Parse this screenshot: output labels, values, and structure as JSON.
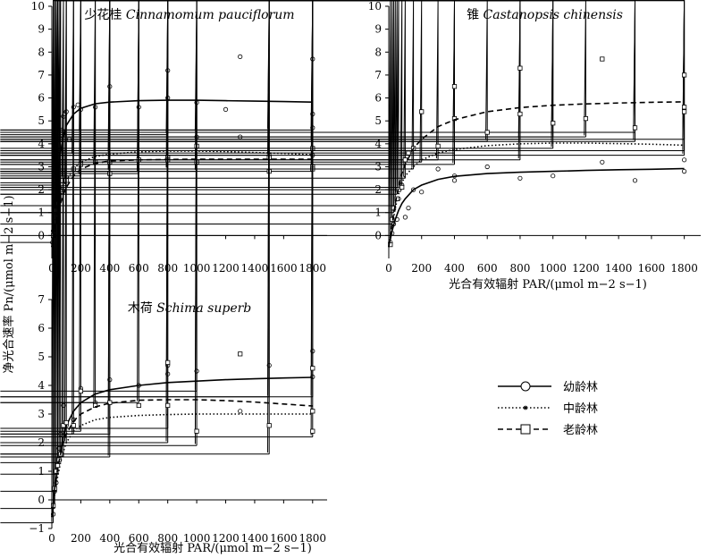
{
  "ylabel": "净光合速率 Pn/(μmol m−2 s−1)",
  "xlabel": "光合有效辐射 PAR/(μmol m−2 s−1)",
  "legend": [
    {
      "label": "幼龄林",
      "style": "solid",
      "marker": "circle"
    },
    {
      "label": "中龄林",
      "style": "dotted",
      "marker": "asterisk"
    },
    {
      "label": "老龄林",
      "style": "dashed",
      "marker": "square"
    }
  ],
  "chart_data": [
    {
      "type": "scatter",
      "title_cn": "少花桂",
      "title_latin": "Cinnamomum pauciflorum",
      "xticks": [
        "0",
        "200",
        "400",
        "600",
        "800",
        "1000",
        "1200",
        "1400",
        "1600",
        "1800"
      ],
      "yticks": [
        "0",
        "1",
        "2",
        "3",
        "4",
        "5",
        "6",
        "7",
        "8",
        "9",
        "10"
      ],
      "xlim": [
        0,
        1900
      ],
      "ylim": [
        -1,
        10
      ],
      "series": [
        {
          "name": "幼龄林",
          "marker": "circle",
          "line": "solid",
          "curve": {
            "x": [
              0,
              20,
              40,
              60,
              80,
              100,
              150,
              200,
              300,
              400,
              600,
              800,
              1000,
              1200,
              1400,
              1600,
              1800
            ],
            "y": [
              -0.5,
              1.2,
              2.6,
              3.6,
              4.3,
              4.8,
              5.3,
              5.55,
              5.75,
              5.82,
              5.88,
              5.9,
              5.9,
              5.88,
              5.86,
              5.84,
              5.82
            ]
          },
          "points": {
            "x": [
              5,
              10,
              15,
              20,
              25,
              30,
              40,
              50,
              60,
              70,
              80,
              90,
              100,
              120,
              150,
              180,
              200,
              300,
              400,
              600,
              800,
              800,
              1000,
              1000,
              1200,
              1300,
              1300,
              1500,
              1800,
              1800,
              1800,
              1800
            ],
            "y": [
              -0.3,
              0.2,
              0.6,
              1.0,
              1.5,
              2.0,
              3.0,
              3.7,
              4.2,
              4.6,
              5.2,
              5.3,
              5.4,
              4.2,
              5.6,
              5.7,
              5.5,
              5.6,
              6.5,
              5.6,
              7.2,
              6.0,
              5.8,
              4.3,
              5.5,
              7.8,
              4.3,
              3.5,
              7.7,
              5.3,
              4.7,
              3.5
            ]
          }
        },
        {
          "name": "中龄林",
          "marker": "asterisk",
          "line": "dotted",
          "curve": {
            "x": [
              0,
              20,
              40,
              60,
              80,
              100,
              150,
              200,
              300,
              400,
              600,
              800,
              1000,
              1200,
              1400,
              1600,
              1800
            ],
            "y": [
              -0.5,
              0.4,
              1.1,
              1.7,
              2.1,
              2.4,
              2.9,
              3.2,
              3.45,
              3.55,
              3.65,
              3.68,
              3.68,
              3.66,
              3.62,
              3.58,
              3.52
            ]
          },
          "points": {
            "x": [
              10,
              20,
              30,
              40,
              50,
              60,
              80,
              100,
              150,
              200,
              200,
              300,
              400,
              400,
              600,
              600,
              800,
              800,
              1000,
              1000,
              1500,
              1500,
              1800,
              1800,
              1800
            ],
            "y": [
              -0.3,
              0.5,
              1.0,
              1.3,
              1.8,
              2.2,
              2.5,
              2.3,
              3.5,
              4.5,
              2.6,
              3.1,
              3.6,
              2.8,
              2.8,
              2.7,
              4.4,
              2.9,
              4.5,
              2.8,
              4.6,
              3.5,
              4.6,
              4.1,
              2.8
            ]
          }
        },
        {
          "name": "老龄林",
          "marker": "square",
          "line": "dashed",
          "curve": {
            "x": [
              0,
              20,
              40,
              60,
              80,
              100,
              150,
              200,
              300,
              400,
              600,
              800,
              1000,
              1200,
              1400,
              1600,
              1800
            ],
            "y": [
              -0.5,
              0.3,
              0.9,
              1.4,
              1.8,
              2.1,
              2.6,
              2.9,
              3.15,
              3.25,
              3.3,
              3.32,
              3.33,
              3.33,
              3.33,
              3.33,
              3.33
            ]
          },
          "points": {
            "x": [
              10,
              20,
              30,
              40,
              50,
              60,
              80,
              100,
              150,
              200,
              300,
              400,
              400,
              600,
              800,
              800,
              1000,
              1000,
              1500,
              1500,
              1800,
              1800,
              1800
            ],
            "y": [
              0.0,
              0.6,
              1.1,
              1.4,
              1.7,
              2.0,
              2.1,
              2.4,
              2.9,
              3.1,
              3.2,
              3.2,
              2.7,
              3.3,
              3.4,
              3.3,
              3.9,
              3.2,
              3.4,
              2.8,
              3.8,
              3.0,
              2.9
            ]
          }
        }
      ]
    },
    {
      "type": "scatter",
      "title_cn": "锥",
      "title_latin": "Castanopsis chinensis",
      "xticks": [
        "0",
        "200",
        "400",
        "600",
        "800",
        "1000",
        "1200",
        "1400",
        "1600",
        "1800"
      ],
      "yticks": [
        "0",
        "1",
        "2",
        "3",
        "4",
        "5",
        "6",
        "7",
        "8",
        "9",
        "10"
      ],
      "xlim": [
        0,
        1900
      ],
      "ylim": [
        -1,
        10
      ],
      "series": [
        {
          "name": "幼龄林",
          "marker": "circle",
          "line": "solid",
          "curve": {
            "x": [
              0,
              20,
              40,
              60,
              80,
              100,
              150,
              200,
              300,
              400,
              600,
              800,
              1000,
              1200,
              1400,
              1600,
              1800
            ],
            "y": [
              -0.5,
              0.2,
              0.7,
              1.1,
              1.4,
              1.6,
              2.0,
              2.2,
              2.45,
              2.58,
              2.7,
              2.76,
              2.8,
              2.84,
              2.87,
              2.89,
              2.92
            ]
          },
          "points": {
            "x": [
              10,
              20,
              30,
              50,
              60,
              80,
              100,
              120,
              150,
              200,
              300,
              400,
              400,
              600,
              800,
              1000,
              1300,
              1500,
              1800,
              1800
            ],
            "y": [
              -0.3,
              0.1,
              0.5,
              0.7,
              1.6,
              2.2,
              0.8,
              1.2,
              2.0,
              1.9,
              2.9,
              2.6,
              2.4,
              3.0,
              2.5,
              2.6,
              3.2,
              2.4,
              3.3,
              2.8
            ]
          }
        },
        {
          "name": "中龄林",
          "marker": "asterisk",
          "line": "dotted",
          "curve": {
            "x": [
              0,
              20,
              40,
              60,
              80,
              100,
              150,
              200,
              300,
              400,
              600,
              800,
              1000,
              1200,
              1400,
              1600,
              1800
            ],
            "y": [
              -0.5,
              0.4,
              1.2,
              1.8,
              2.3,
              2.6,
              3.0,
              3.3,
              3.6,
              3.75,
              3.92,
              4.0,
              4.03,
              4.03,
              4.01,
              3.98,
              3.94
            ]
          },
          "points": {
            "x": [
              10,
              20,
              30,
              40,
              50,
              60,
              80,
              100,
              150,
              200,
              300,
              400,
              400,
              600,
              800,
              800,
              1000,
              1000,
              1200,
              1500,
              1500,
              1800,
              1800,
              1800
            ],
            "y": [
              0.0,
              0.5,
              1.0,
              1.3,
              1.8,
              2.1,
              2.0,
              2.5,
              2.9,
              3.2,
              3.3,
              3.6,
              3.1,
              4.1,
              4.2,
              3.3,
              4.3,
              3.8,
              4.3,
              4.5,
              4.1,
              4.2,
              3.7,
              3.5
            ]
          }
        },
        {
          "name": "老龄林",
          "marker": "square",
          "line": "dashed",
          "curve": {
            "x": [
              0,
              20,
              40,
              60,
              80,
              100,
              150,
              200,
              300,
              400,
              600,
              800,
              1000,
              1200,
              1400,
              1600,
              1800
            ],
            "y": [
              -0.5,
              0.5,
              1.4,
              2.1,
              2.7,
              3.1,
              3.8,
              4.2,
              4.75,
              5.05,
              5.4,
              5.58,
              5.68,
              5.74,
              5.78,
              5.81,
              5.83
            ]
          },
          "points": {
            "x": [
              10,
              20,
              30,
              50,
              60,
              80,
              100,
              120,
              150,
              200,
              300,
              400,
              400,
              600,
              800,
              800,
              1000,
              1200,
              1300,
              1500,
              1800,
              1800,
              1800
            ],
            "y": [
              -0.4,
              0.7,
              1.2,
              1.6,
              2.0,
              2.1,
              3.3,
              3.6,
              3.8,
              5.4,
              3.9,
              6.5,
              5.1,
              4.5,
              7.3,
              5.3,
              4.9,
              5.1,
              7.7,
              4.7,
              7.0,
              5.6,
              5.4
            ]
          }
        }
      ]
    },
    {
      "type": "scatter",
      "title_cn": "木荷",
      "title_latin": "Schima superb",
      "xticks": [
        "0",
        "200",
        "400",
        "600",
        "800",
        "1000",
        "1200",
        "1400",
        "1600",
        "1800"
      ],
      "yticks": [
        "−1",
        "0",
        "1",
        "2",
        "3",
        "4",
        "5",
        "6",
        "7"
      ],
      "xlim": [
        0,
        1900
      ],
      "ylim": [
        -1,
        7
      ],
      "series": [
        {
          "name": "幼龄林",
          "marker": "circle",
          "line": "solid",
          "curve": {
            "x": [
              0,
              20,
              40,
              60,
              80,
              100,
              150,
              200,
              300,
              400,
              600,
              800,
              1000,
              1200,
              1400,
              1600,
              1800
            ],
            "y": [
              -0.6,
              0.3,
              1.1,
              1.7,
              2.2,
              2.6,
              3.1,
              3.4,
              3.7,
              3.85,
              4.0,
              4.1,
              4.15,
              4.2,
              4.23,
              4.26,
              4.28
            ]
          },
          "points": {
            "x": [
              10,
              20,
              30,
              40,
              50,
              60,
              80,
              100,
              150,
              200,
              300,
              400,
              600,
              800,
              800,
              1000,
              1300,
              1500,
              1800,
              1800
            ],
            "y": [
              -0.5,
              0.3,
              0.6,
              1.2,
              1.8,
              2.3,
              3.3,
              2.6,
              2.8,
              3.9,
              3.4,
              4.2,
              4.0,
              4.7,
              4.4,
              4.5,
              3.1,
              4.7,
              5.2,
              4.3
            ]
          }
        },
        {
          "name": "中龄林",
          "marker": "asterisk",
          "line": "dotted",
          "curve": {
            "x": [
              0,
              20,
              40,
              60,
              80,
              100,
              150,
              200,
              300,
              400,
              600,
              800,
              1000,
              1200,
              1400,
              1600,
              1800
            ],
            "y": [
              -0.6,
              0.2,
              0.8,
              1.3,
              1.7,
              2.0,
              2.4,
              2.6,
              2.8,
              2.88,
              2.95,
              2.98,
              3.0,
              3.0,
              3.0,
              3.0,
              3.0
            ]
          },
          "points": {
            "x": [
              10,
              20,
              30,
              40,
              50,
              60,
              80,
              100,
              150,
              200,
              300,
              400,
              400,
              600,
              800,
              800,
              1000,
              1000,
              1500,
              1500,
              1800,
              1800
            ],
            "y": [
              -0.8,
              -0.3,
              0.3,
              0.9,
              1.3,
              1.6,
              1.5,
              2.0,
              2.3,
              2.4,
              3.4,
              2.3,
              1.5,
              3.4,
              2.5,
              2.0,
              3.8,
              1.9,
              3.6,
              1.6,
              3.6,
              2.2
            ]
          }
        },
        {
          "name": "老龄林",
          "marker": "square",
          "line": "dashed",
          "curve": {
            "x": [
              0,
              20,
              40,
              60,
              80,
              100,
              150,
              200,
              300,
              400,
              600,
              800,
              1000,
              1200,
              1400,
              1600,
              1800
            ],
            "y": [
              -0.6,
              0.4,
              1.1,
              1.6,
              2.0,
              2.3,
              2.75,
              3.0,
              3.25,
              3.38,
              3.48,
              3.5,
              3.5,
              3.47,
              3.42,
              3.35,
              3.28
            ]
          },
          "points": {
            "x": [
              10,
              20,
              30,
              40,
              50,
              60,
              80,
              100,
              150,
              200,
              300,
              400,
              600,
              800,
              800,
              1000,
              1300,
              1500,
              1800,
              1800,
              1800
            ],
            "y": [
              -0.2,
              0.4,
              1.0,
              1.2,
              1.4,
              1.6,
              2.6,
              2.7,
              2.6,
              3.8,
              3.3,
              3.4,
              3.3,
              4.8,
              3.3,
              2.4,
              5.1,
              2.6,
              4.6,
              3.1,
              2.4
            ]
          }
        }
      ]
    }
  ]
}
